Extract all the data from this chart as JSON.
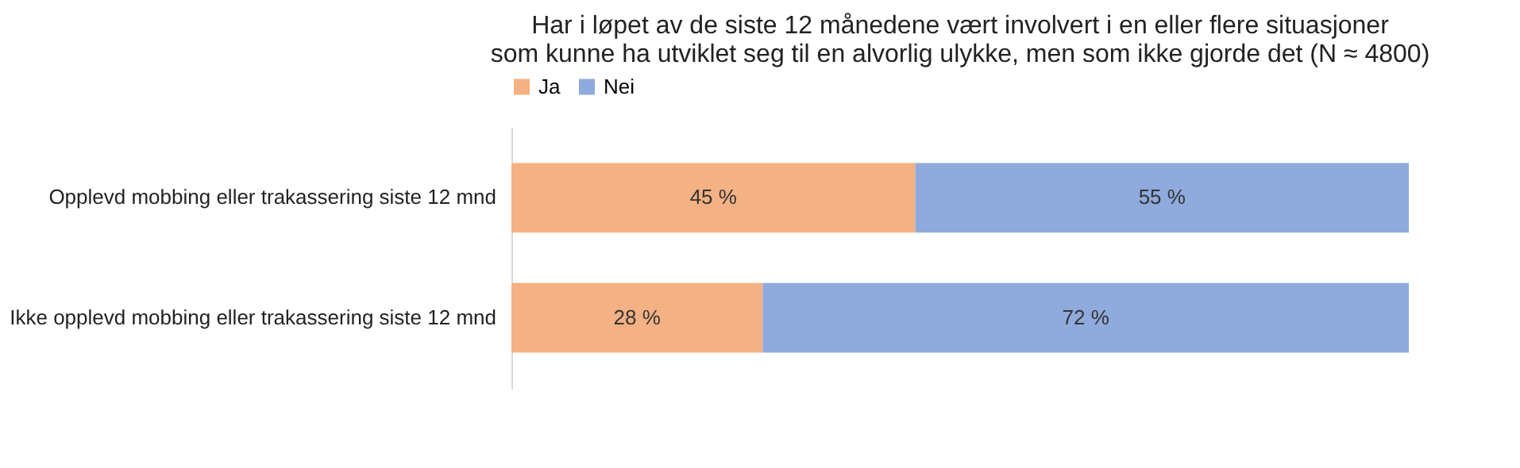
{
  "chart_data": {
    "type": "bar",
    "orientation": "horizontal",
    "stacked": true,
    "title": [
      "Har i løpet av de siste 12 månedene vært involvert i en eller flere situasjoner",
      "som kunne ha utviklet seg til en alvorlig ulykke, men som ikke gjorde det (N ≈ 4800)"
    ],
    "categories": [
      "Opplevd mobbing eller trakassering siste 12 mnd",
      "Ikke opplevd mobbing eller trakassering siste 12 mnd"
    ],
    "series": [
      {
        "name": "Ja",
        "color": "#f4b183",
        "values": [
          45,
          28
        ],
        "value_labels": [
          "45 %",
          "28 %"
        ]
      },
      {
        "name": "Nei",
        "color": "#8faadc",
        "values": [
          55,
          72
        ],
        "value_labels": [
          "55 %",
          "72 %"
        ]
      }
    ],
    "legend": "top",
    "tick_labels": "y"
  }
}
